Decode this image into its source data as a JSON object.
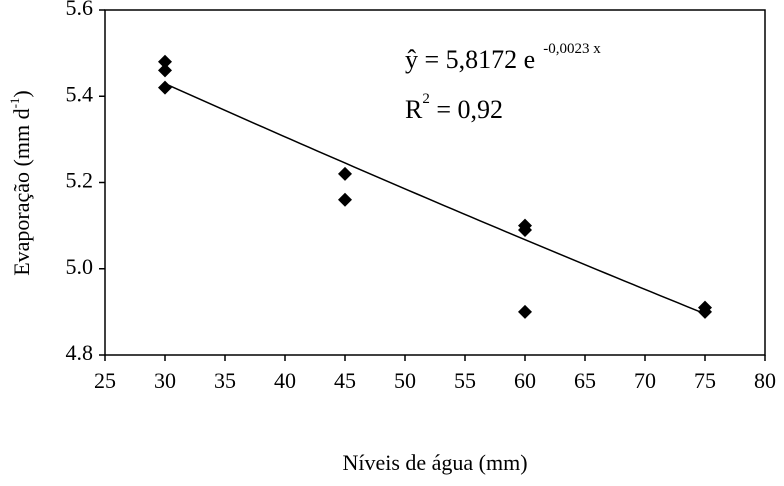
{
  "chart_data": {
    "type": "scatter",
    "x_label": "Níveis de água (mm)",
    "y_label": {
      "base": "Evaporação (mm d",
      "exponent": "-1",
      "end": ")"
    },
    "series": [
      {
        "color": "#000000",
        "x": [
          30,
          30,
          30,
          45,
          45,
          60,
          60,
          60,
          75,
          75
        ],
        "values": [
          5.48,
          5.46,
          5.42,
          5.22,
          5.16,
          5.1,
          5.09,
          4.9,
          4.91,
          4.9
        ]
      }
    ],
    "trendline": {
      "a": 5.8172,
      "b": -0.0023,
      "x_range": [
        30,
        75
      ],
      "color": "#000000"
    },
    "equation": {
      "base": "ŷ = 5,8172 e",
      "exponent": "-0,0023 x"
    },
    "r2": {
      "base": "R",
      "exponent": "2",
      "rest": " = 0,92"
    },
    "xlim": [
      25,
      80
    ],
    "xticks": [
      25,
      30,
      35,
      40,
      45,
      50,
      55,
      60,
      65,
      70,
      75,
      80
    ],
    "ylim": [
      4.8,
      5.6
    ],
    "yticks": [
      4.8,
      {
        "value": 5.0,
        "label": "5.0"
      },
      5.2,
      5.4,
      5.6
    ],
    "grid": false
  }
}
